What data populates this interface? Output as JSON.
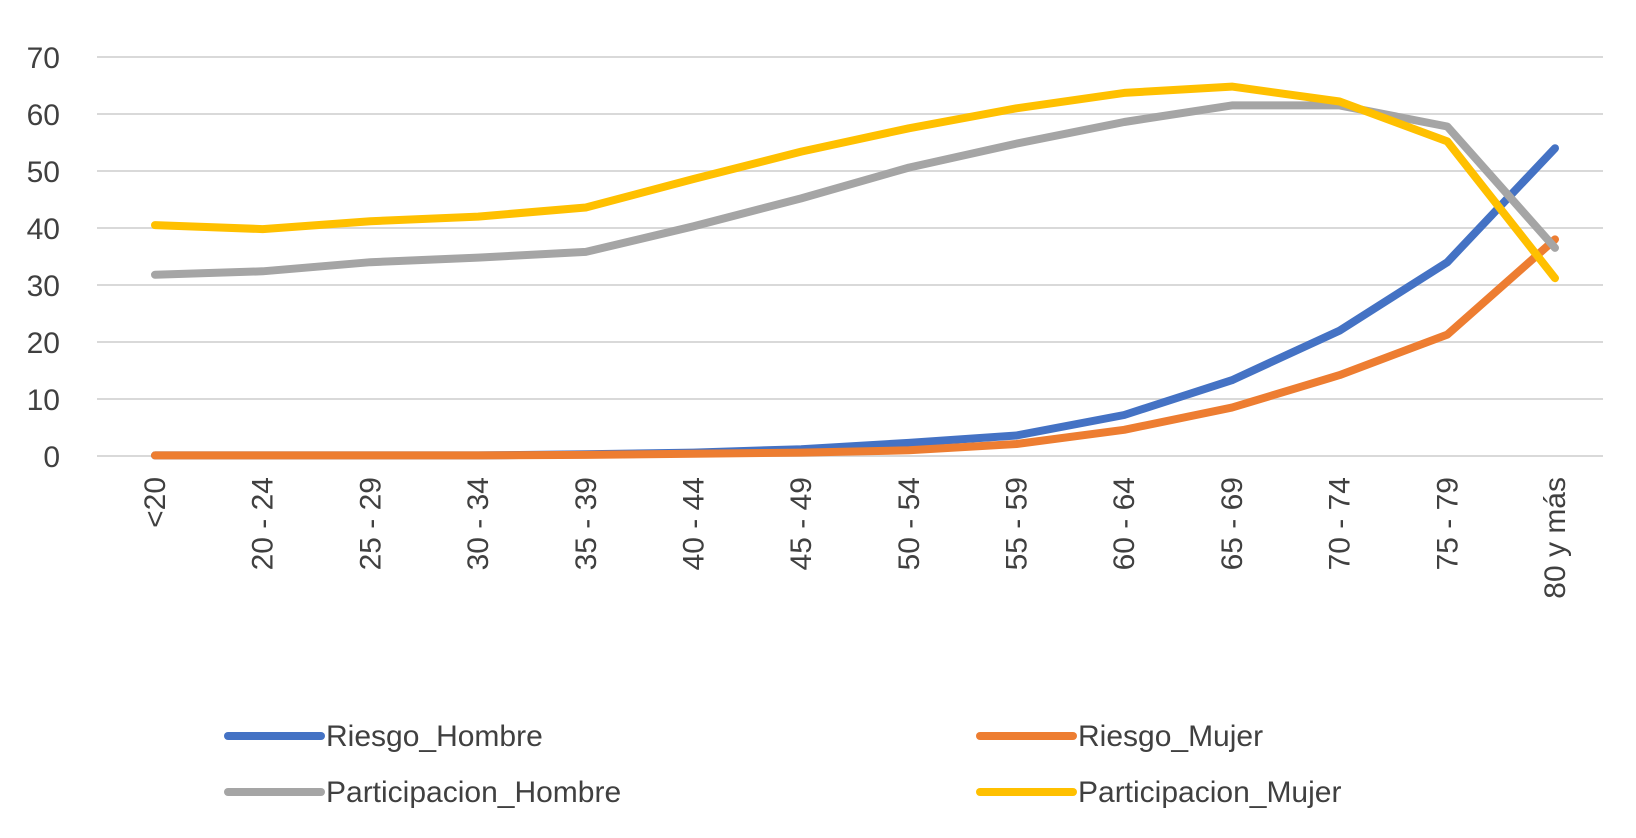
{
  "chart_data": {
    "type": "line",
    "categories": [
      "<20",
      "20 - 24",
      "25 - 29",
      "30 - 34",
      "35 - 39",
      "40 - 44",
      "45 - 49",
      "50 - 54",
      "55 - 59",
      "60 - 64",
      "65 - 69",
      "70 - 74",
      "75 - 79",
      "80 y más"
    ],
    "series": [
      {
        "name": "Riesgo_Hombre",
        "color": "#4472c4",
        "values": [
          0.1,
          0.1,
          0.1,
          0.1,
          0.3,
          0.6,
          1.2,
          2.3,
          3.6,
          7.2,
          13.3,
          22.0,
          34.0,
          54.0
        ]
      },
      {
        "name": "Riesgo_Mujer",
        "color": "#ed7d31",
        "values": [
          0.1,
          0.1,
          0.1,
          0.1,
          0.2,
          0.4,
          0.6,
          1.0,
          2.1,
          4.6,
          8.5,
          14.2,
          21.3,
          38.0
        ]
      },
      {
        "name": "Participacion_Hombre",
        "color": "#a5a5a5",
        "values": [
          31.8,
          32.4,
          34.0,
          34.8,
          35.8,
          40.3,
          45.2,
          50.6,
          54.8,
          58.6,
          61.5,
          61.5,
          57.8,
          36.5
        ]
      },
      {
        "name": "Participacion_Mujer",
        "color": "#ffc000",
        "values": [
          40.5,
          39.8,
          41.2,
          42.0,
          43.6,
          48.6,
          53.4,
          57.5,
          61.0,
          63.7,
          64.8,
          62.2,
          55.2,
          31.2
        ]
      }
    ],
    "yticks": [
      "0",
      "10",
      "20",
      "30",
      "40",
      "50",
      "60",
      "70"
    ],
    "ylim": [
      0,
      70
    ],
    "grid": true,
    "legend_position": "bottom",
    "xlabel": "",
    "ylabel": "",
    "title": ""
  }
}
